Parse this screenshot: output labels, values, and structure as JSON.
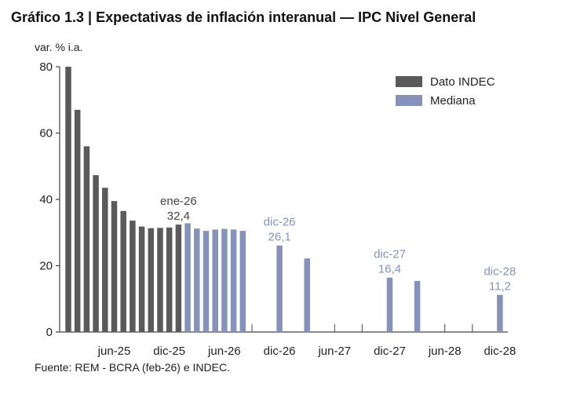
{
  "title": "Gráfico 1.3 | Expectativas de inflación interanual — IPC Nivel General",
  "source": "Fuente: REM - BCRA (feb-26) e INDEC.",
  "colors": {
    "indec": "#5a5a5a",
    "mediana": "#8792b8",
    "axis": "#444444"
  },
  "chart_data": {
    "type": "bar",
    "title": "Gráfico 1.3 | Expectativas de inflación interanual — IPC Nivel General",
    "ylabel": "var. % i.a.",
    "ylim": [
      0,
      80
    ],
    "yticks": [
      "0",
      "20",
      "40",
      "60",
      "80"
    ],
    "grid": false,
    "legend_position": "top-right",
    "x_tick_labels": [
      "jun-25",
      "dic-25",
      "jun-26",
      "dic-26",
      "jun-27",
      "dic-27",
      "jun-28",
      "dic-28"
    ],
    "months": [
      "ene-25",
      "feb-25",
      "mar-25",
      "abr-25",
      "may-25",
      "jun-25",
      "jul-25",
      "ago-25",
      "sep-25",
      "oct-25",
      "nov-25",
      "dic-25",
      "ene-26",
      "feb-26",
      "mar-26",
      "abr-26",
      "may-26",
      "jun-26",
      "jul-26",
      "ago-26",
      "sep-26",
      "oct-26",
      "nov-26",
      "dic-26",
      "ene-27",
      "feb-27",
      "mar-27",
      "abr-27",
      "may-27",
      "jun-27",
      "jul-27",
      "ago-27",
      "sep-27",
      "oct-27",
      "nov-27",
      "dic-27",
      "ene-28",
      "feb-28",
      "mar-28",
      "abr-28",
      "may-28",
      "jun-28",
      "jul-28",
      "ago-28",
      "sep-28",
      "oct-28",
      "nov-28",
      "dic-28"
    ],
    "series": [
      {
        "name": "Dato INDEC",
        "points": [
          {
            "month": "ene-25",
            "value": 80
          },
          {
            "month": "feb-25",
            "value": 67
          },
          {
            "month": "mar-25",
            "value": 56
          },
          {
            "month": "abr-25",
            "value": 47.3
          },
          {
            "month": "may-25",
            "value": 43.5
          },
          {
            "month": "jun-25",
            "value": 39.5
          },
          {
            "month": "jul-25",
            "value": 36.5
          },
          {
            "month": "ago-25",
            "value": 33.6
          },
          {
            "month": "sep-25",
            "value": 31.8
          },
          {
            "month": "oct-25",
            "value": 31.3
          },
          {
            "month": "nov-25",
            "value": 31.4
          },
          {
            "month": "dic-25",
            "value": 31.5
          },
          {
            "month": "ene-26",
            "value": 32.4
          }
        ]
      },
      {
        "name": "Mediana",
        "points": [
          {
            "month": "feb-26",
            "value": 32.8
          },
          {
            "month": "mar-26",
            "value": 31.2
          },
          {
            "month": "abr-26",
            "value": 30.5
          },
          {
            "month": "may-26",
            "value": 30.9
          },
          {
            "month": "jun-26",
            "value": 31.1
          },
          {
            "month": "jul-26",
            "value": 30.9
          },
          {
            "month": "ago-26",
            "value": 30.5
          },
          {
            "month": "dic-26",
            "value": 26.1
          },
          {
            "month": "mar-27",
            "value": 22.2
          },
          {
            "month": "dic-27",
            "value": 16.4
          },
          {
            "month": "mar-28",
            "value": 15.4
          },
          {
            "month": "dic-28",
            "value": 11.2
          }
        ]
      }
    ],
    "annotations": [
      {
        "month": "ene-26",
        "series": "Dato INDEC",
        "label": "ene-26",
        "value_label": "32,4"
      },
      {
        "month": "dic-26",
        "series": "Mediana",
        "label": "dic-26",
        "value_label": "26,1"
      },
      {
        "month": "dic-27",
        "series": "Mediana",
        "label": "dic-27",
        "value_label": "16,4"
      },
      {
        "month": "dic-28",
        "series": "Mediana",
        "label": "dic-28",
        "value_label": "11,2"
      }
    ]
  }
}
